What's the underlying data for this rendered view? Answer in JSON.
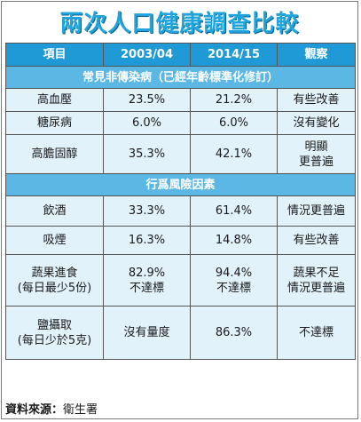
{
  "title": "兩次人口健康調查比較",
  "header": [
    "項目",
    "2003/04",
    "2014/15",
    "觀察"
  ],
  "sections": [
    {
      "title": "常見非傳染病（已經年齡標準化修訂）",
      "rows": [
        {
          "item": [
            "高血壓"
          ],
          "y1": [
            "23.5%"
          ],
          "y2": [
            "21.2%"
          ],
          "note": [
            "有些改善"
          ]
        },
        {
          "item": [
            "糖尿病"
          ],
          "y1": [
            "6.0%"
          ],
          "y2": [
            "6.0%"
          ],
          "note": [
            "沒有變化"
          ]
        },
        {
          "item": [
            "高膽固醇"
          ],
          "y1": [
            "35.3%"
          ],
          "y2": [
            "42.1%"
          ],
          "note": [
            "明顯",
            "更普遍"
          ]
        }
      ]
    },
    {
      "title": "行爲風險因素",
      "rows": [
        {
          "item": [
            "飲酒"
          ],
          "y1": [
            "33.3%"
          ],
          "y2": [
            "61.4%"
          ],
          "note": [
            "情況更普遍"
          ]
        },
        {
          "item": [
            "吸煙"
          ],
          "y1": [
            "16.3%"
          ],
          "y2": [
            "14.8%"
          ],
          "note": [
            "有些改善"
          ]
        },
        {
          "item": [
            "蔬果進食",
            "(每日最少5份)"
          ],
          "y1": [
            "82.9%",
            "不達標"
          ],
          "y2": [
            "94.4%",
            "不達標"
          ],
          "note": [
            "蔬果不足",
            "情況更普遍"
          ]
        },
        {
          "item": [
            "鹽攝取",
            "(每日少於5克)"
          ],
          "y1": [
            "沒有量度"
          ],
          "y2": [
            "86.3%"
          ],
          "note": [
            "不達標"
          ]
        }
      ]
    }
  ],
  "source": {
    "label": "資料來源：",
    "value": "衛生署"
  },
  "colors": {
    "title": "#1fa5dc",
    "header_bg": "#1f9ad6",
    "section_bg": "#5bb7e4",
    "row_bg": "#e2f2fb"
  }
}
